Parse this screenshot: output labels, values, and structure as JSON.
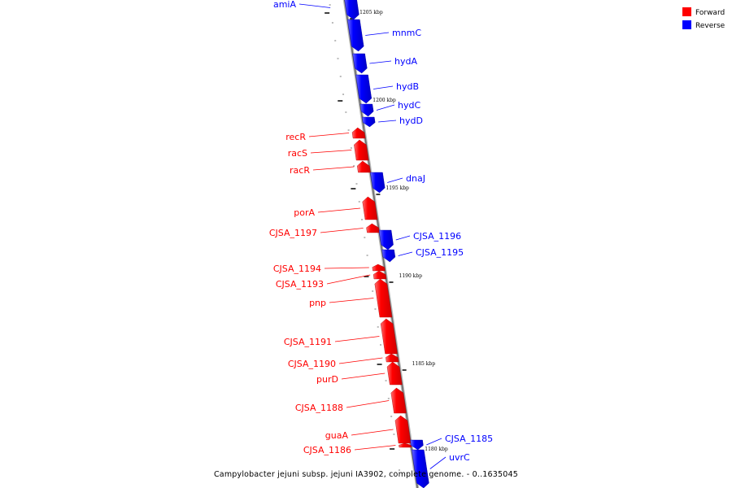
{
  "caption": "Campylobacter jejuni subsp. jejuni IA3902, complete genome. - 0..1635045",
  "legend": [
    {
      "label": "Forward",
      "color": "#ff0000"
    },
    {
      "label": "Reverse",
      "color": "#0000ff"
    }
  ],
  "ruler": [
    "1205 kbp",
    "1200 kbp",
    "1195 kbp",
    "1190 kbp",
    "1185 kbp",
    "1180 kbp"
  ],
  "genes": [
    {
      "name": "amiA",
      "strand": "reverse"
    },
    {
      "name": "mnmC",
      "strand": "reverse"
    },
    {
      "name": "hydA",
      "strand": "reverse"
    },
    {
      "name": "hydB",
      "strand": "reverse"
    },
    {
      "name": "hydC",
      "strand": "reverse"
    },
    {
      "name": "hydD",
      "strand": "reverse"
    },
    {
      "name": "recR",
      "strand": "forward"
    },
    {
      "name": "racS",
      "strand": "forward"
    },
    {
      "name": "racR",
      "strand": "forward"
    },
    {
      "name": "dnaJ",
      "strand": "reverse"
    },
    {
      "name": "porA",
      "strand": "forward"
    },
    {
      "name": "CJSA_1197",
      "strand": "forward"
    },
    {
      "name": "CJSA_1196",
      "strand": "reverse"
    },
    {
      "name": "CJSA_1195",
      "strand": "reverse"
    },
    {
      "name": "CJSA_1194",
      "strand": "forward"
    },
    {
      "name": "CJSA_1193",
      "strand": "forward"
    },
    {
      "name": "pnp",
      "strand": "forward"
    },
    {
      "name": "CJSA_1191",
      "strand": "forward"
    },
    {
      "name": "CJSA_1190",
      "strand": "forward"
    },
    {
      "name": "purD",
      "strand": "forward"
    },
    {
      "name": "CJSA_1188",
      "strand": "forward"
    },
    {
      "name": "guaA",
      "strand": "forward"
    },
    {
      "name": "CJSA_1186",
      "strand": "forward"
    },
    {
      "name": "CJSA_1185",
      "strand": "reverse"
    },
    {
      "name": "uvrC",
      "strand": "reverse"
    }
  ]
}
